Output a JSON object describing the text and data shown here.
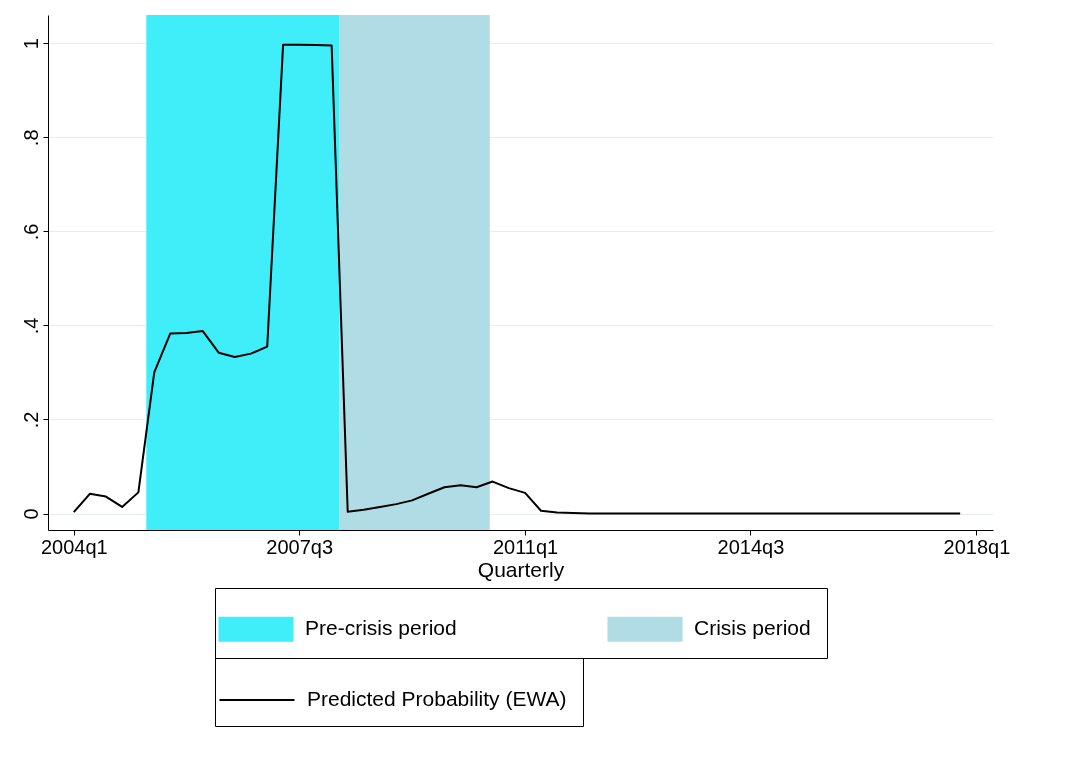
{
  "chart_data": {
    "type": "line",
    "xlabel": "Quarterly",
    "x": [
      "2004-01",
      "2004-04",
      "2004-07",
      "2004-10",
      "2005-01",
      "2005-04",
      "2005-07",
      "2005-10",
      "2006-01",
      "2006-04",
      "2006-07",
      "2006-10",
      "2007-01",
      "2007-04",
      "2007-07",
      "2007-10",
      "2008-01",
      "2008-04",
      "2008-07",
      "2008-10",
      "2009-01",
      "2009-04",
      "2009-07",
      "2009-10",
      "2010-01",
      "2010-04",
      "2010-07",
      "2010-10",
      "2011-01",
      "2011-04",
      "2011-07",
      "2011-10",
      "2012-01",
      "2012-07",
      "2013-01",
      "2014-01",
      "2015-01",
      "2016-01",
      "2017-01",
      "2017-10"
    ],
    "series": [
      {
        "name": "Predicted Probability (EWA)",
        "color": "#000000",
        "values": [
          0.003,
          0.042,
          0.036,
          0.014,
          0.045,
          0.3,
          0.383,
          0.384,
          0.388,
          0.342,
          0.333,
          0.34,
          0.355,
          0.997,
          0.997,
          0.996,
          0.995,
          0.004,
          0.008,
          0.014,
          0.02,
          0.028,
          0.042,
          0.056,
          0.06,
          0.056,
          0.068,
          0.054,
          0.044,
          0.006,
          0.002,
          0.001,
          0,
          0,
          0,
          0,
          0,
          0,
          0,
          0
        ]
      }
    ],
    "bands": [
      {
        "axis": "x",
        "from": "2005-02-15",
        "to": "2008-02-15",
        "label": "Pre-crisis period",
        "color": "#40eefa"
      },
      {
        "axis": "x",
        "from": "2008-02-15",
        "to": "2010-06-15",
        "label": "Crisis period",
        "color": "#b0dce6"
      }
    ],
    "xlim": [
      "2003-08-08",
      "2018-04-05"
    ],
    "ylim": [
      -0.035,
      1.06
    ],
    "xticks": [
      {
        "value": "2004-01",
        "label": "2004q1"
      },
      {
        "value": "2007-07",
        "label": "2007q3"
      },
      {
        "value": "2011-01",
        "label": "2011q1"
      },
      {
        "value": "2014-07",
        "label": "2014q3"
      },
      {
        "value": "2018-01",
        "label": "2018q1"
      }
    ],
    "yticks": [
      0,
      {
        "value": 0.2,
        "label": ".2"
      },
      {
        "value": 0.4,
        "label": ".4"
      },
      {
        "value": 0.6,
        "label": ".6"
      },
      {
        "value": 0.8,
        "label": ".8"
      },
      1
    ],
    "grid": "y",
    "legend": "bottom",
    "marker": "none",
    "line_style": "solid"
  }
}
